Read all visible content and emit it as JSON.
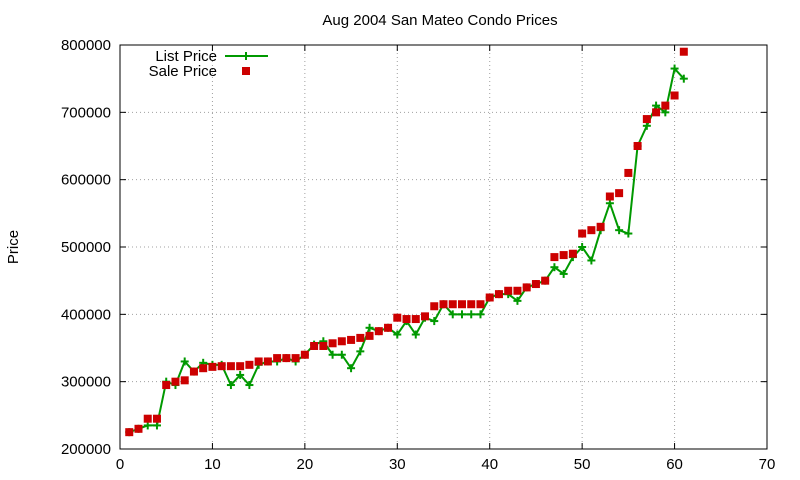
{
  "chart_data": {
    "type": "line",
    "title": "Aug 2004 San Mateo Condo Prices",
    "xlabel": "",
    "ylabel": "Price",
    "xlim": [
      0,
      70
    ],
    "ylim": [
      200000,
      800000
    ],
    "x_ticks": [
      0,
      10,
      20,
      30,
      40,
      50,
      60,
      70
    ],
    "y_ticks": [
      200000,
      300000,
      400000,
      500000,
      600000,
      700000,
      800000
    ],
    "grid": true,
    "legend_position": "top-left",
    "colors": {
      "list": "#009900",
      "sale": "#cc0000"
    },
    "series": [
      {
        "name": "List Price",
        "style": "line-plus",
        "x": [
          1,
          2,
          3,
          4,
          5,
          6,
          7,
          8,
          9,
          10,
          11,
          12,
          13,
          14,
          15,
          16,
          17,
          18,
          19,
          20,
          21,
          22,
          23,
          24,
          25,
          26,
          27,
          28,
          29,
          30,
          31,
          32,
          33,
          34,
          35,
          36,
          37,
          38,
          39,
          40,
          41,
          42,
          43,
          44,
          45,
          46,
          47,
          48,
          49,
          50,
          51,
          52,
          53,
          54,
          55,
          56,
          57,
          58,
          59,
          60,
          61
        ],
        "values": [
          225000,
          230000,
          235000,
          235000,
          300000,
          295000,
          330000,
          315000,
          328000,
          325000,
          325000,
          295000,
          310000,
          295000,
          325000,
          330000,
          330000,
          335000,
          330000,
          340000,
          355000,
          360000,
          340000,
          340000,
          320000,
          345000,
          380000,
          375000,
          380000,
          370000,
          390000,
          370000,
          395000,
          390000,
          415000,
          400000,
          400000,
          400000,
          400000,
          425000,
          430000,
          430000,
          420000,
          440000,
          445000,
          450000,
          470000,
          460000,
          485000,
          500000,
          480000,
          525000,
          565000,
          525000,
          520000,
          650000,
          680000,
          710000,
          700000,
          765000,
          750000
        ]
      },
      {
        "name": "Sale Price",
        "style": "square-points",
        "x": [
          1,
          2,
          3,
          4,
          5,
          6,
          7,
          8,
          9,
          10,
          11,
          12,
          13,
          14,
          15,
          16,
          17,
          18,
          19,
          20,
          21,
          22,
          23,
          24,
          25,
          26,
          27,
          28,
          29,
          30,
          31,
          32,
          33,
          34,
          35,
          36,
          37,
          38,
          39,
          40,
          41,
          42,
          43,
          44,
          45,
          46,
          47,
          48,
          49,
          50,
          51,
          52,
          53,
          54,
          55,
          56,
          57,
          58,
          59,
          60,
          61
        ],
        "values": [
          225000,
          230000,
          245000,
          245000,
          295000,
          300000,
          302000,
          315000,
          320000,
          322000,
          323000,
          323000,
          323000,
          325000,
          330000,
          330000,
          335000,
          335000,
          335000,
          340000,
          353000,
          353000,
          357000,
          360000,
          362000,
          365000,
          368000,
          375000,
          380000,
          395000,
          393000,
          393000,
          397000,
          412000,
          415000,
          415000,
          415000,
          415000,
          415000,
          425000,
          430000,
          435000,
          435000,
          440000,
          445000,
          450000,
          485000,
          488000,
          490000,
          520000,
          525000,
          530000,
          575000,
          580000,
          610000,
          650000,
          690000,
          700000,
          710000,
          725000,
          790000
        ]
      }
    ]
  }
}
